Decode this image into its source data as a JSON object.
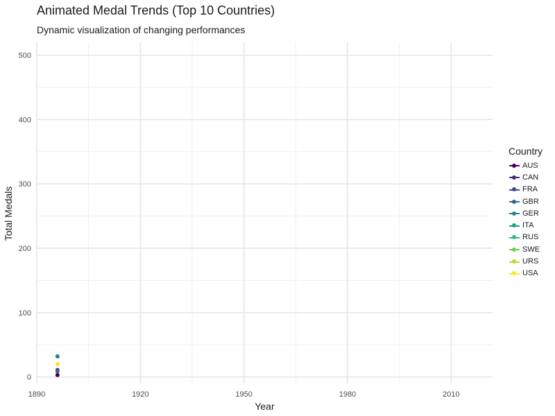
{
  "chart_data": {
    "type": "line",
    "title": "Animated Medal Trends (Top 10 Countries)",
    "subtitle": "Dynamic visualization of changing performances",
    "xlabel": "Year",
    "ylabel": "Total Medals",
    "xlim": [
      1890,
      2022
    ],
    "ylim": [
      -10,
      520
    ],
    "x_ticks": [
      1890,
      1920,
      1950,
      1980,
      2010
    ],
    "y_ticks": [
      0,
      100,
      200,
      300,
      400,
      500
    ],
    "x_tick_labels": [
      "1890",
      "1920",
      "1950",
      "1980",
      "2010"
    ],
    "y_tick_labels": [
      "0",
      "100",
      "200",
      "300",
      "400",
      "500"
    ],
    "grid": true,
    "legend_title": "Country",
    "legend_position": "right",
    "series": [
      {
        "name": "AUS",
        "color": "#440154",
        "points": [
          {
            "x": 1896,
            "y": 3
          }
        ]
      },
      {
        "name": "CAN",
        "color": "#482878",
        "points": []
      },
      {
        "name": "FRA",
        "color": "#3E4A89",
        "points": [
          {
            "x": 1896,
            "y": 11
          }
        ]
      },
      {
        "name": "GBR",
        "color": "#31688E",
        "points": [
          {
            "x": 1896,
            "y": 9
          }
        ]
      },
      {
        "name": "GER",
        "color": "#26828E",
        "points": [
          {
            "x": 1896,
            "y": 32
          }
        ]
      },
      {
        "name": "ITA",
        "color": "#1F9E89",
        "points": []
      },
      {
        "name": "RUS",
        "color": "#35B779",
        "points": []
      },
      {
        "name": "SWE",
        "color": "#6DCD59",
        "points": []
      },
      {
        "name": "URS",
        "color": "#B4DE2C",
        "points": []
      },
      {
        "name": "USA",
        "color": "#FDE725",
        "points": [
          {
            "x": 1896,
            "y": 20
          }
        ]
      }
    ]
  }
}
